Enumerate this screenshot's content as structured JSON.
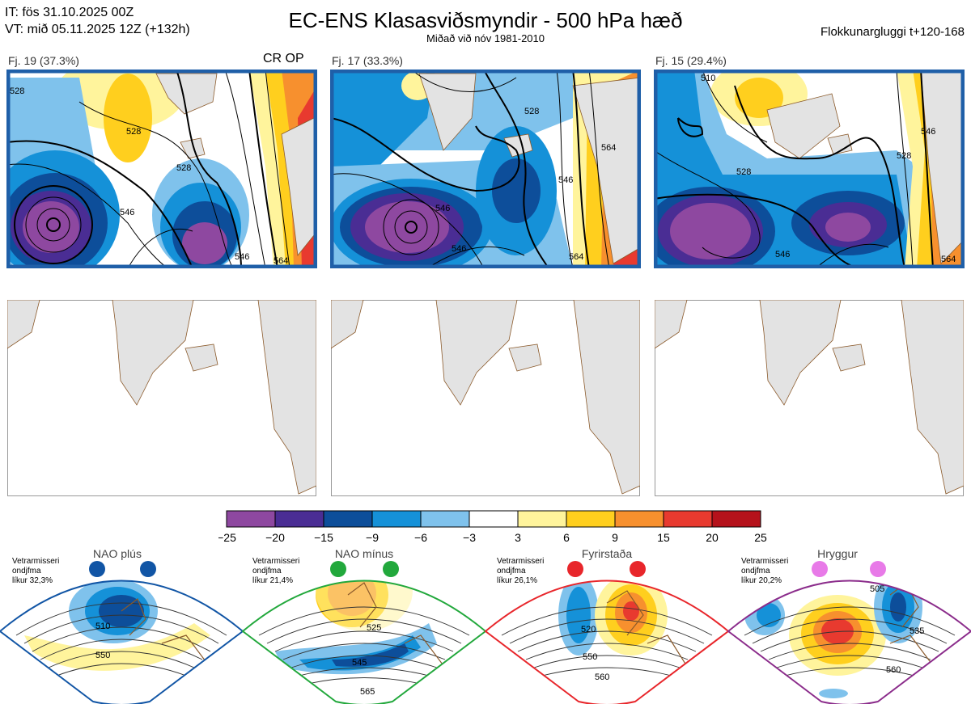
{
  "header": {
    "it_line": "IT: fös 31.10.2025 00Z",
    "vt_line": "VT: mið 05.11.2025 12Z  (+132h)",
    "title": "EC-ENS Klasasviðsmyndir - 500 hPa hæð",
    "subtitle": "Miðað við nóv 1981-2010",
    "window": "Flokkunargluggi t+120-168"
  },
  "colors": {
    "frame": "#1f5fa8",
    "land": "#e3e3e3",
    "coast": "#8b5a2b",
    "nao_plus": "#1155a5",
    "nao_minus": "#22a83c",
    "blocking": "#e8262b",
    "ridge": "#e87ae8"
  },
  "chart_data": {
    "type": "heatmap",
    "title": "EC-ENS Klasasviðsmyndir - 500 hPa hæð",
    "colorbar": {
      "ticks": [
        "−25",
        "−20",
        "−15",
        "−9",
        "−6",
        "−3",
        "3",
        "6",
        "9",
        "15",
        "20",
        "25"
      ],
      "colors": [
        "#8e48a0",
        "#4a2d94",
        "#0d4e9a",
        "#1591d8",
        "#7fc2ec",
        "#ffffff",
        "#fff49c",
        "#ffcf1e",
        "#f7902e",
        "#e83a2f",
        "#b5121b"
      ]
    },
    "clusters": [
      {
        "label": "Fj. 19 (37.3%)",
        "members": 19,
        "percent": 37.3,
        "tag": "CR OP",
        "contours": [
          {
            "text": "528"
          },
          {
            "text": "528"
          },
          {
            "text": "546"
          },
          {
            "text": "546"
          },
          {
            "text": "564"
          },
          {
            "text": "528"
          }
        ]
      },
      {
        "label": "Fj. 17 (33.3%)",
        "members": 17,
        "percent": 33.3,
        "tag": "",
        "contours": [
          {
            "text": "528"
          },
          {
            "text": "546"
          },
          {
            "text": "564"
          },
          {
            "text": "546"
          },
          {
            "text": "546"
          },
          {
            "text": "564"
          }
        ]
      },
      {
        "label": "Fj. 15 (29.4%)",
        "members": 15,
        "percent": 29.4,
        "tag": "",
        "contours": [
          {
            "text": "510"
          },
          {
            "text": "528"
          },
          {
            "text": "528"
          },
          {
            "text": "546"
          },
          {
            "text": "546"
          },
          {
            "text": "564"
          }
        ]
      }
    ],
    "regimes": [
      {
        "name": "NAO plús",
        "note": [
          "Vetrarmisseri",
          "ondjfma",
          "líkur 32,3%"
        ],
        "probability": 32.3,
        "contours": [
          "510",
          "550"
        ]
      },
      {
        "name": "NAO mínus",
        "note": [
          "Vetrarmisseri",
          "ondjfma",
          "líkur 21,4%"
        ],
        "probability": 21.4,
        "contours": [
          "525",
          "545",
          "565"
        ]
      },
      {
        "name": "Fyrirstaða",
        "note": [
          "Vetrarmisseri",
          "ondjfma",
          "líkur 26,1%"
        ],
        "probability": 26.1,
        "contours": [
          "520",
          "550",
          "560"
        ]
      },
      {
        "name": "Hryggur",
        "note": [
          "Vetrarmisseri",
          "ondjfma",
          "líkur 20,2%"
        ],
        "probability": 20.2,
        "contours": [
          "505",
          "535",
          "560"
        ]
      }
    ]
  }
}
